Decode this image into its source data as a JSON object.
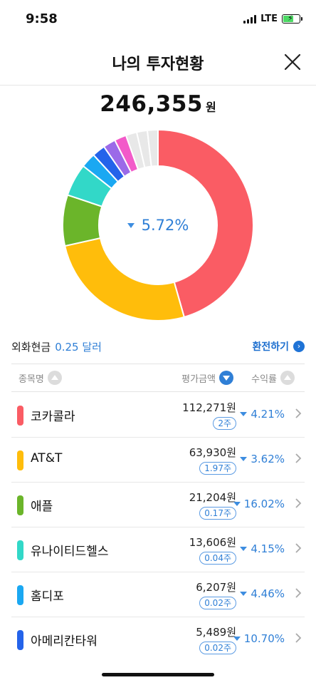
{
  "status": {
    "time": "9:58",
    "network": "LTE"
  },
  "header": {
    "title": "나의 투자현황"
  },
  "summary": {
    "total_amount": "246,355",
    "total_unit": "원",
    "return_rate": "5.72%"
  },
  "chart_data": {
    "type": "pie",
    "title": "",
    "center_label": "5.72%",
    "slices": [
      {
        "label": "코카콜라",
        "value": 112271,
        "color": "#fa5c64"
      },
      {
        "label": "AT&T",
        "value": 63930,
        "color": "#ffbd0b"
      },
      {
        "label": "애플",
        "value": 21204,
        "color": "#6bb52a"
      },
      {
        "label": "유나이티드헬스",
        "value": 13606,
        "color": "#32d8c8"
      },
      {
        "label": "홈디포",
        "value": 6207,
        "color": "#1aa8f2"
      },
      {
        "label": "아메리칸타워",
        "value": 5489,
        "color": "#2463ea"
      },
      {
        "label": "",
        "value": 5200,
        "color": "#9b6ae8"
      },
      {
        "label": "",
        "value": 5000,
        "color": "#f25ac9"
      },
      {
        "label": "",
        "value": 4600,
        "color": "#e8e8e8"
      },
      {
        "label": "",
        "value": 4450,
        "color": "#e8e8e8"
      },
      {
        "label": "",
        "value": 4400,
        "color": "#e8e8e8"
      }
    ]
  },
  "fx": {
    "label": "외화현금",
    "value": "0.25 달러",
    "exchange_label": "환전하기"
  },
  "table": {
    "headers": {
      "name": "종목명",
      "value": "평가금액",
      "rate": "수익률"
    },
    "rows": [
      {
        "name": "코카콜라",
        "value": "112,271원",
        "qty": "2주",
        "rate": "4.21%",
        "color": "#fa5c64"
      },
      {
        "name": "AT&T",
        "value": "63,930원",
        "qty": "1.97주",
        "rate": "3.62%",
        "color": "#ffbd0b"
      },
      {
        "name": "애플",
        "value": "21,204원",
        "qty": "0.17주",
        "rate": "16.02%",
        "color": "#6bb52a"
      },
      {
        "name": "유나이티드헬스",
        "value": "13,606원",
        "qty": "0.04주",
        "rate": "4.15%",
        "color": "#32d8c8"
      },
      {
        "name": "홈디포",
        "value": "6,207원",
        "qty": "0.02주",
        "rate": "4.46%",
        "color": "#1aa8f2"
      },
      {
        "name": "아메리칸타워",
        "value": "5,489원",
        "qty": "0.02주",
        "rate": "10.70%",
        "color": "#2463ea"
      }
    ]
  }
}
